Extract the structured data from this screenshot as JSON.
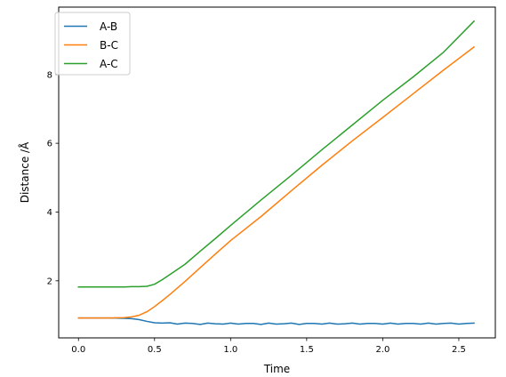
{
  "chart_data": {
    "type": "line",
    "title": "",
    "xlabel": "Time",
    "ylabel": "Distance /Å",
    "xlim": [
      -0.13,
      2.74
    ],
    "ylim": [
      0.34,
      9.96
    ],
    "xticks": [
      0.0,
      0.5,
      1.0,
      1.5,
      2.0,
      2.5
    ],
    "xtick_labels": [
      "0.0",
      "0.5",
      "1.0",
      "1.5",
      "2.0",
      "2.5"
    ],
    "yticks": [
      2,
      4,
      6,
      8
    ],
    "ytick_labels": [
      "2",
      "4",
      "6",
      "8"
    ],
    "grid": false,
    "legend": {
      "position": "top-left"
    },
    "series": [
      {
        "name": "A-B",
        "color": "#1f77b4",
        "x": [
          0.0,
          0.1,
          0.2,
          0.3,
          0.35,
          0.4,
          0.45,
          0.5,
          0.55,
          0.6,
          0.65,
          0.7,
          0.75,
          0.8,
          0.85,
          0.9,
          0.95,
          1.0,
          1.05,
          1.1,
          1.15,
          1.2,
          1.25,
          1.3,
          1.35,
          1.4,
          1.45,
          1.5,
          1.55,
          1.6,
          1.65,
          1.7,
          1.75,
          1.8,
          1.85,
          1.9,
          1.95,
          2.0,
          2.05,
          2.1,
          2.15,
          2.2,
          2.25,
          2.3,
          2.35,
          2.4,
          2.45,
          2.5,
          2.55,
          2.6
        ],
        "y": [
          0.92,
          0.92,
          0.92,
          0.91,
          0.9,
          0.87,
          0.82,
          0.78,
          0.77,
          0.78,
          0.74,
          0.77,
          0.76,
          0.73,
          0.77,
          0.75,
          0.74,
          0.77,
          0.74,
          0.76,
          0.76,
          0.73,
          0.77,
          0.74,
          0.75,
          0.77,
          0.73,
          0.76,
          0.76,
          0.74,
          0.77,
          0.74,
          0.75,
          0.77,
          0.74,
          0.76,
          0.76,
          0.74,
          0.77,
          0.74,
          0.76,
          0.76,
          0.74,
          0.77,
          0.74,
          0.76,
          0.77,
          0.74,
          0.76,
          0.77
        ]
      },
      {
        "name": "B-C",
        "color": "#ff7f0e",
        "x": [
          0.0,
          0.1,
          0.2,
          0.3,
          0.35,
          0.4,
          0.45,
          0.5,
          0.55,
          0.6,
          0.7,
          0.8,
          0.9,
          1.0,
          1.2,
          1.4,
          1.6,
          1.8,
          2.0,
          2.2,
          2.4,
          2.6
        ],
        "y": [
          0.92,
          0.92,
          0.92,
          0.93,
          0.95,
          1.0,
          1.1,
          1.25,
          1.42,
          1.6,
          1.98,
          2.38,
          2.78,
          3.17,
          3.87,
          4.62,
          5.36,
          6.07,
          6.75,
          7.44,
          8.13,
          8.8
        ]
      },
      {
        "name": "A-C",
        "color": "#2ca02c",
        "x": [
          0.0,
          0.1,
          0.2,
          0.3,
          0.35,
          0.4,
          0.45,
          0.5,
          0.55,
          0.6,
          0.7,
          0.8,
          0.9,
          1.0,
          1.2,
          1.4,
          1.6,
          1.8,
          2.0,
          2.2,
          2.4,
          2.6
        ],
        "y": [
          1.82,
          1.82,
          1.82,
          1.82,
          1.83,
          1.83,
          1.84,
          1.9,
          2.03,
          2.18,
          2.48,
          2.86,
          3.23,
          3.61,
          4.35,
          5.07,
          5.81,
          6.53,
          7.25,
          7.93,
          8.65,
          9.55
        ]
      }
    ]
  }
}
